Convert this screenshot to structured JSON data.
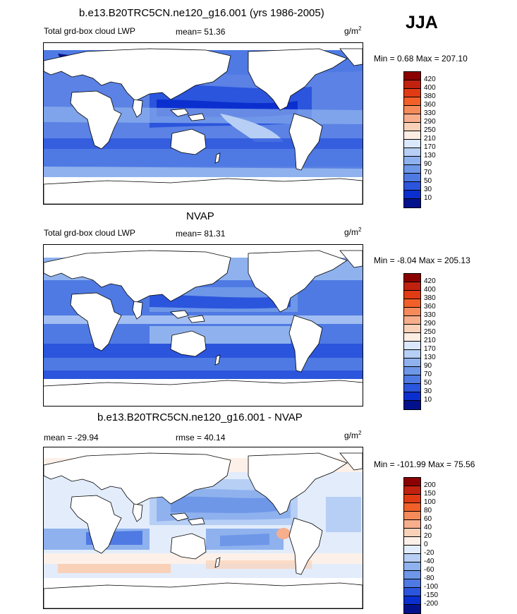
{
  "season_label": "JJA",
  "panels": [
    {
      "id": "model",
      "title": "b.e13.B20TRC5CN.ne120_g16.001 (yrs 1986-2005)",
      "left_label": "Total grd-box cloud LWP",
      "mid_label": "mean=  51.36",
      "units_base": "g/m",
      "units_exp": "2",
      "minmax": "Min =   0.68 Max = 207.10",
      "colorbar_levels": [
        "420",
        "400",
        "380",
        "360",
        "330",
        "290",
        "250",
        "210",
        "170",
        "130",
        "90",
        "70",
        "50",
        "30",
        "10"
      ],
      "colorbar_colors": [
        "#8b0000",
        "#c1210f",
        "#e03b14",
        "#f2602a",
        "#f58b5a",
        "#f7ae8c",
        "#f9d1b8",
        "#fdeee4",
        "#dbe8fb",
        "#b7cff5",
        "#8fb2ee",
        "#6e97e8",
        "#4f7ae3",
        "#2b55dc",
        "#0b2fcf",
        "#03128c"
      ]
    },
    {
      "id": "obs",
      "title": "NVAP",
      "left_label": "Total grd-box cloud LWP",
      "mid_label": "mean=  81.31",
      "units_base": "g/m",
      "units_exp": "2",
      "minmax": "Min =  -8.04 Max = 205.13",
      "colorbar_levels": [
        "420",
        "400",
        "380",
        "360",
        "330",
        "290",
        "250",
        "210",
        "170",
        "130",
        "90",
        "70",
        "50",
        "30",
        "10"
      ],
      "colorbar_colors": [
        "#8b0000",
        "#c1210f",
        "#e03b14",
        "#f2602a",
        "#f58b5a",
        "#f7ae8c",
        "#f9d1b8",
        "#fdeee4",
        "#dbe8fb",
        "#b7cff5",
        "#8fb2ee",
        "#6e97e8",
        "#4f7ae3",
        "#2b55dc",
        "#0b2fcf",
        "#03128c"
      ]
    },
    {
      "id": "diff",
      "title": "b.e13.B20TRC5CN.ne120_g16.001 - NVAP",
      "left_label": "mean = -29.94",
      "mid_label": "rmse =  40.14",
      "units_base": "g/m",
      "units_exp": "2",
      "minmax": "Min = -101.99 Max =  75.56",
      "colorbar_levels": [
        "200",
        "150",
        "100",
        "80",
        "60",
        "40",
        "20",
        "0",
        "-20",
        "-40",
        "-60",
        "-80",
        "-100",
        "-150",
        "-200"
      ],
      "colorbar_colors": [
        "#8b0000",
        "#c1210f",
        "#e03b14",
        "#f2602a",
        "#f58b5a",
        "#f7ae8c",
        "#f9d1b8",
        "#fdf0e8",
        "#e2ecfb",
        "#b7cff5",
        "#8fb2ee",
        "#6e97e8",
        "#4f7ae3",
        "#2b55dc",
        "#0b2fcf",
        "#03128c"
      ]
    }
  ]
}
